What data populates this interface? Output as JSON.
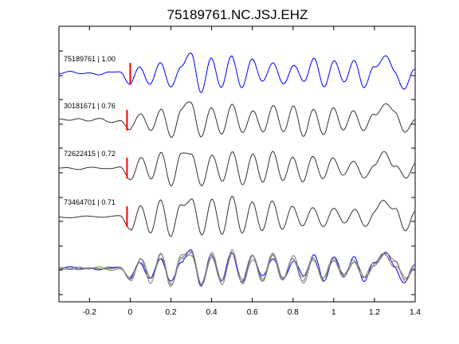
{
  "chart_data": {
    "type": "line",
    "title": "75189761.NC.JSJ.EHZ",
    "xlabel": "",
    "ylabel": "",
    "xlim": [
      -0.35,
      1.4
    ],
    "xticks": [
      -0.2,
      0,
      0.2,
      0.4,
      0.6,
      0.8,
      1,
      1.2,
      1.4
    ],
    "xtick_labels": [
      "-0.2",
      "0",
      "0.2",
      "0.4",
      "0.6",
      "0.8",
      "1",
      "1.2",
      "1.4"
    ],
    "grid": false,
    "legend": "none",
    "pick_marker_x": 0,
    "colors": {
      "master": "#0000ff",
      "correlated": "#333333",
      "overlay": "#7f7f7f",
      "pick": "#ff0000",
      "axis": "#000000"
    },
    "x": [
      -0.35,
      -0.3,
      -0.25,
      -0.2,
      -0.15,
      -0.1,
      -0.05,
      0.0,
      0.05,
      0.1,
      0.15,
      0.2,
      0.25,
      0.3,
      0.35,
      0.4,
      0.45,
      0.5,
      0.55,
      0.6,
      0.65,
      0.7,
      0.75,
      0.8,
      0.85,
      0.9,
      0.95,
      1.0,
      1.05,
      1.1,
      1.15,
      1.2,
      1.25,
      1.3,
      1.35,
      1.4
    ],
    "series": [
      {
        "name": "75189761",
        "label": "75189761 | 1.00",
        "color": "master",
        "values": [
          0.05,
          0.12,
          0.0,
          0.1,
          -0.05,
          0.08,
          0.15,
          -0.55,
          0.4,
          -0.6,
          0.7,
          -0.8,
          0.5,
          1.0,
          -0.9,
          0.8,
          -0.7,
          1.0,
          -0.8,
          0.9,
          -0.5,
          0.7,
          -0.6,
          0.5,
          -0.4,
          0.8,
          -0.6,
          0.6,
          -0.3,
          0.6,
          -0.6,
          0.3,
          1.0,
          0.1,
          -0.8,
          0.3
        ]
      },
      {
        "name": "30181671",
        "label": "30181671 | 0.76",
        "color": "correlated",
        "values": [
          0.1,
          0.0,
          0.15,
          0.02,
          0.1,
          -0.05,
          0.05,
          -0.5,
          0.5,
          -0.6,
          0.7,
          -0.9,
          0.6,
          1.0,
          -0.9,
          0.8,
          -0.8,
          1.0,
          -0.7,
          0.6,
          -0.6,
          0.8,
          -0.5,
          0.7,
          -0.7,
          0.5,
          -0.6,
          0.6,
          -0.4,
          0.5,
          -0.5,
          0.4,
          0.8,
          0.6,
          -0.7,
          0.2
        ]
      },
      {
        "name": "72622415",
        "label": "72622415 | 0.72",
        "color": "correlated",
        "values": [
          0.0,
          0.05,
          0.0,
          0.05,
          0.02,
          0.05,
          0.08,
          -0.6,
          0.6,
          -0.5,
          0.8,
          -0.8,
          0.7,
          0.9,
          -1.0,
          0.8,
          -0.7,
          0.9,
          -0.8,
          0.7,
          -0.6,
          0.8,
          -0.5,
          0.5,
          -0.6,
          0.6,
          -0.5,
          0.6,
          -0.4,
          0.5,
          -0.6,
          0.3,
          0.8,
          0.2,
          -0.5,
          0.3
        ]
      },
      {
        "name": "73464701",
        "label": "73464701 | 0.71",
        "color": "correlated",
        "values": [
          0.0,
          0.02,
          0.03,
          0.03,
          0.05,
          0.05,
          0.05,
          -0.6,
          0.5,
          -0.7,
          0.8,
          -0.9,
          0.6,
          1.0,
          -0.9,
          0.9,
          -0.8,
          1.0,
          -0.7,
          0.7,
          -0.6,
          0.8,
          -0.6,
          0.6,
          -0.5,
          0.6,
          -0.6,
          0.6,
          -0.4,
          0.5,
          -0.5,
          0.3,
          0.9,
          0.4,
          -0.6,
          0.2
        ]
      }
    ]
  }
}
